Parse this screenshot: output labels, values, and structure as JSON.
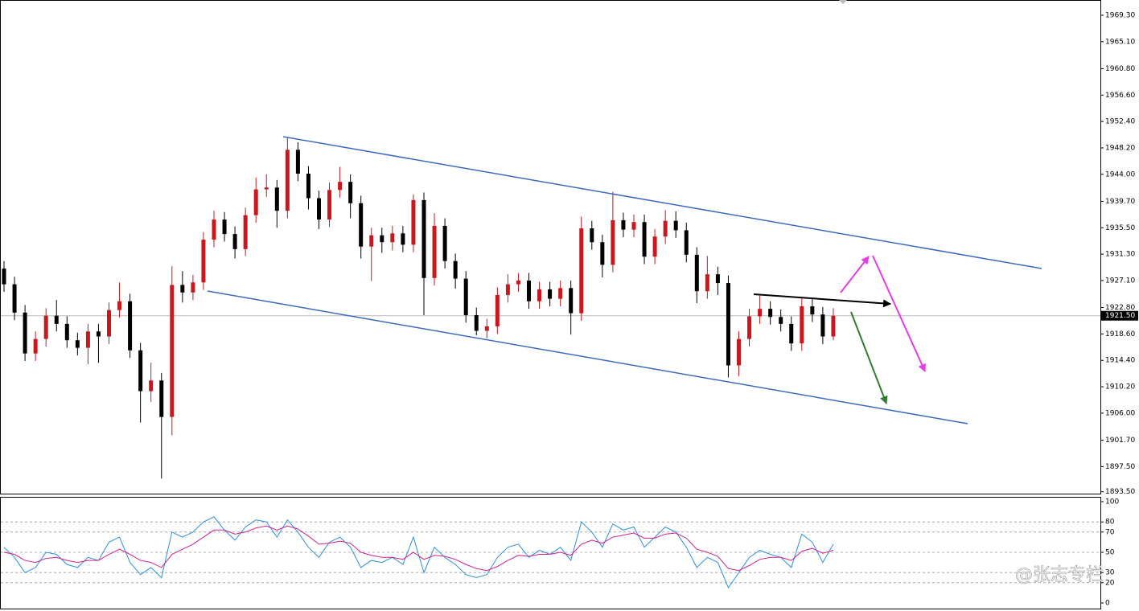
{
  "chart_data": [
    {
      "type": "candlestick",
      "open": [
        1929,
        1926.5,
        1922,
        1915.5,
        1917.8,
        1921.5,
        1920.2,
        1917.6,
        1916.4,
        1919,
        1918.2,
        1922.4,
        1923.8,
        1916,
        1909.5,
        1911.2,
        1905.4,
        1926.4,
        1925.2,
        1926.8,
        1933.6,
        1936.8,
        1934.5,
        1932.1,
        1937.5,
        1941.6,
        1941.9,
        1938.2,
        1947.9,
        1944.1,
        1940.2,
        1936.8,
        1941.5,
        1942.8,
        1939.4,
        1932.5,
        1934.3,
        1933.2,
        1934.6,
        1932.8,
        1939.9,
        1927.5,
        1935.8,
        1930.2,
        1927.4,
        1921.6,
        1919.1,
        1919.8,
        1924.8,
        1926.5,
        1927.1,
        1923.8,
        1925.7,
        1924.2,
        1925.9,
        1921.9,
        1935.4,
        1933.2,
        1929.6,
        1936.7,
        1935.2,
        1936.4,
        1930.9,
        1934.1,
        1936.6,
        1935.1,
        1931.2,
        1925.4,
        1928.1,
        1926.7,
        1913.6,
        1917.8,
        1921.4,
        1922.6,
        1921.3,
        1920.2,
        1917.1,
        1923.0,
        1921.7,
        1918.2
      ],
      "high": [
        1930.2,
        1927.7,
        1923.2,
        1919.0,
        1922.7,
        1924.0,
        1921.4,
        1918.8,
        1920.2,
        1920.2,
        1923.6,
        1926.8,
        1925.0,
        1917.2,
        1914.0,
        1912.4,
        1929.4,
        1928.6,
        1928.0,
        1934.8,
        1938.2,
        1938.0,
        1935.7,
        1938.7,
        1943.5,
        1944.0,
        1943.1,
        1949.8,
        1949.1,
        1945.3,
        1941.4,
        1942.7,
        1945.2,
        1944.0,
        1940.6,
        1935.5,
        1935.5,
        1935.8,
        1935.8,
        1940.8,
        1941.1,
        1937.8,
        1937.0,
        1931.4,
        1928.6,
        1922.8,
        1921.0,
        1926.0,
        1928.1,
        1928.3,
        1928.3,
        1926.9,
        1926.9,
        1927.1,
        1927.1,
        1937.3,
        1936.6,
        1934.4,
        1941.2,
        1937.9,
        1937.6,
        1937.6,
        1935.3,
        1938.3,
        1938.1,
        1936.3,
        1932.4,
        1931.0,
        1929.3,
        1927.9,
        1919.0,
        1922.6,
        1924.7,
        1923.8,
        1922.5,
        1921.4,
        1924.5,
        1924.2,
        1922.9,
        1922.7
      ],
      "low": [
        1925.3,
        1920.8,
        1914.3,
        1914.3,
        1916.6,
        1919.0,
        1916.4,
        1915.2,
        1913.8,
        1914.0,
        1917.0,
        1921.2,
        1914.8,
        1904.5,
        1907.8,
        1895.6,
        1902.5,
        1923.6,
        1924.0,
        1925.6,
        1932.4,
        1933.3,
        1930.6,
        1931.0,
        1936.3,
        1940.4,
        1935.5,
        1937.0,
        1942.9,
        1938.4,
        1935.3,
        1935.6,
        1940.3,
        1937.0,
        1930.6,
        1927.0,
        1931.5,
        1931.9,
        1931.6,
        1931.6,
        1921.6,
        1926.3,
        1929.0,
        1925.8,
        1920.4,
        1918.4,
        1917.9,
        1918.6,
        1923.6,
        1925.3,
        1922.6,
        1922.6,
        1923.0,
        1923.0,
        1918.5,
        1920.7,
        1932.0,
        1927.6,
        1928.4,
        1934.0,
        1934.0,
        1929.7,
        1929.7,
        1932.9,
        1933.9,
        1930.0,
        1923.5,
        1924.2,
        1924.8,
        1911.7,
        1911.9,
        1916.6,
        1920.2,
        1920.1,
        1919.0,
        1915.9,
        1915.9,
        1920.5,
        1917.0,
        1917.6
      ],
      "close": [
        1926.5,
        1922,
        1915.5,
        1917.8,
        1921.5,
        1920.2,
        1917.6,
        1916.4,
        1919,
        1918.2,
        1922.4,
        1923.8,
        1916,
        1909.5,
        1911.2,
        1905.4,
        1926.4,
        1925.2,
        1926.8,
        1933.6,
        1936.8,
        1934.5,
        1932.1,
        1937.5,
        1941.6,
        1941.9,
        1938.2,
        1947.9,
        1944.1,
        1940.2,
        1936.8,
        1941.5,
        1942.8,
        1939.4,
        1932.5,
        1934.3,
        1933.2,
        1934.6,
        1932.8,
        1939.9,
        1927.5,
        1935.8,
        1930.2,
        1927.4,
        1921.6,
        1919.1,
        1919.8,
        1924.8,
        1926.5,
        1927.1,
        1923.8,
        1925.7,
        1924.2,
        1925.9,
        1921.9,
        1935.4,
        1933.2,
        1929.6,
        1936.7,
        1935.2,
        1936.4,
        1930.9,
        1934.1,
        1936.6,
        1935.1,
        1931.2,
        1925.4,
        1928.1,
        1926.7,
        1913.6,
        1917.8,
        1921.4,
        1922.6,
        1921.3,
        1920.2,
        1917.1,
        1923.0,
        1921.7,
        1918.2,
        1921.5
      ],
      "up_color": "#c8171d",
      "down_color": "#000000",
      "ylim": [
        1893.2,
        1971.6
      ],
      "yticks": [
        {
          "value": 1969.3,
          "label": "1969.30"
        },
        {
          "value": 1965.1,
          "label": "1965.10"
        },
        {
          "value": 1960.8,
          "label": "1960.80"
        },
        {
          "value": 1956.6,
          "label": "1956.60"
        },
        {
          "value": 1952.4,
          "label": "1952.40"
        },
        {
          "value": 1948.2,
          "label": "1948.20"
        },
        {
          "value": 1944.0,
          "label": "1944.00"
        },
        {
          "value": 1939.7,
          "label": "1939.70"
        },
        {
          "value": 1935.5,
          "label": "1935.50"
        },
        {
          "value": 1931.3,
          "label": "1931.30"
        },
        {
          "value": 1927.1,
          "label": "1927.10"
        },
        {
          "value": 1922.8,
          "label": "1922.80"
        },
        {
          "value": 1918.6,
          "label": "1918.60"
        },
        {
          "value": 1914.4,
          "label": "1914.40"
        },
        {
          "value": 1910.2,
          "label": "1910.20"
        },
        {
          "value": 1906.0,
          "label": "1906.00"
        },
        {
          "value": 1901.7,
          "label": "1901.70"
        },
        {
          "value": 1897.5,
          "label": "1897.50"
        },
        {
          "value": 1893.5,
          "label": "1893.50"
        }
      ],
      "current_price": {
        "value": 1921.5,
        "label": "1921.50"
      }
    },
    {
      "type": "line",
      "series": [
        {
          "color": "#2a8fe0",
          "values": [
            55,
            45,
            30,
            35,
            50,
            48,
            38,
            35,
            45,
            42,
            60,
            65,
            40,
            28,
            35,
            25,
            70,
            65,
            70,
            80,
            85,
            72,
            62,
            75,
            82,
            80,
            65,
            82,
            70,
            55,
            45,
            60,
            65,
            55,
            35,
            42,
            40,
            45,
            38,
            65,
            30,
            55,
            45,
            38,
            28,
            25,
            28,
            45,
            55,
            58,
            45,
            52,
            48,
            55,
            42,
            80,
            70,
            55,
            78,
            72,
            75,
            55,
            65,
            75,
            70,
            55,
            35,
            45,
            40,
            15,
            30,
            45,
            52,
            48,
            45,
            35,
            68,
            60,
            40,
            58
          ]
        },
        {
          "color": "#d0208f",
          "values": [
            50,
            48,
            42,
            40,
            44,
            45,
            42,
            40,
            42,
            42,
            48,
            53,
            48,
            42,
            40,
            35,
            48,
            53,
            58,
            65,
            72,
            72,
            68,
            70,
            74,
            76,
            72,
            76,
            73,
            66,
            58,
            59,
            61,
            59,
            50,
            47,
            45,
            45,
            43,
            50,
            43,
            47,
            46,
            43,
            38,
            34,
            32,
            36,
            42,
            47,
            46,
            48,
            48,
            50,
            47,
            58,
            62,
            59,
            65,
            67,
            69,
            64,
            64,
            68,
            69,
            64,
            53,
            50,
            46,
            34,
            32,
            37,
            43,
            45,
            45,
            42,
            51,
            54,
            49,
            52
          ]
        }
      ],
      "ylim": [
        0,
        100
      ],
      "yticks": [
        0,
        20,
        30,
        50,
        70,
        80,
        100
      ]
    }
  ],
  "watermark": "@张志专栏"
}
